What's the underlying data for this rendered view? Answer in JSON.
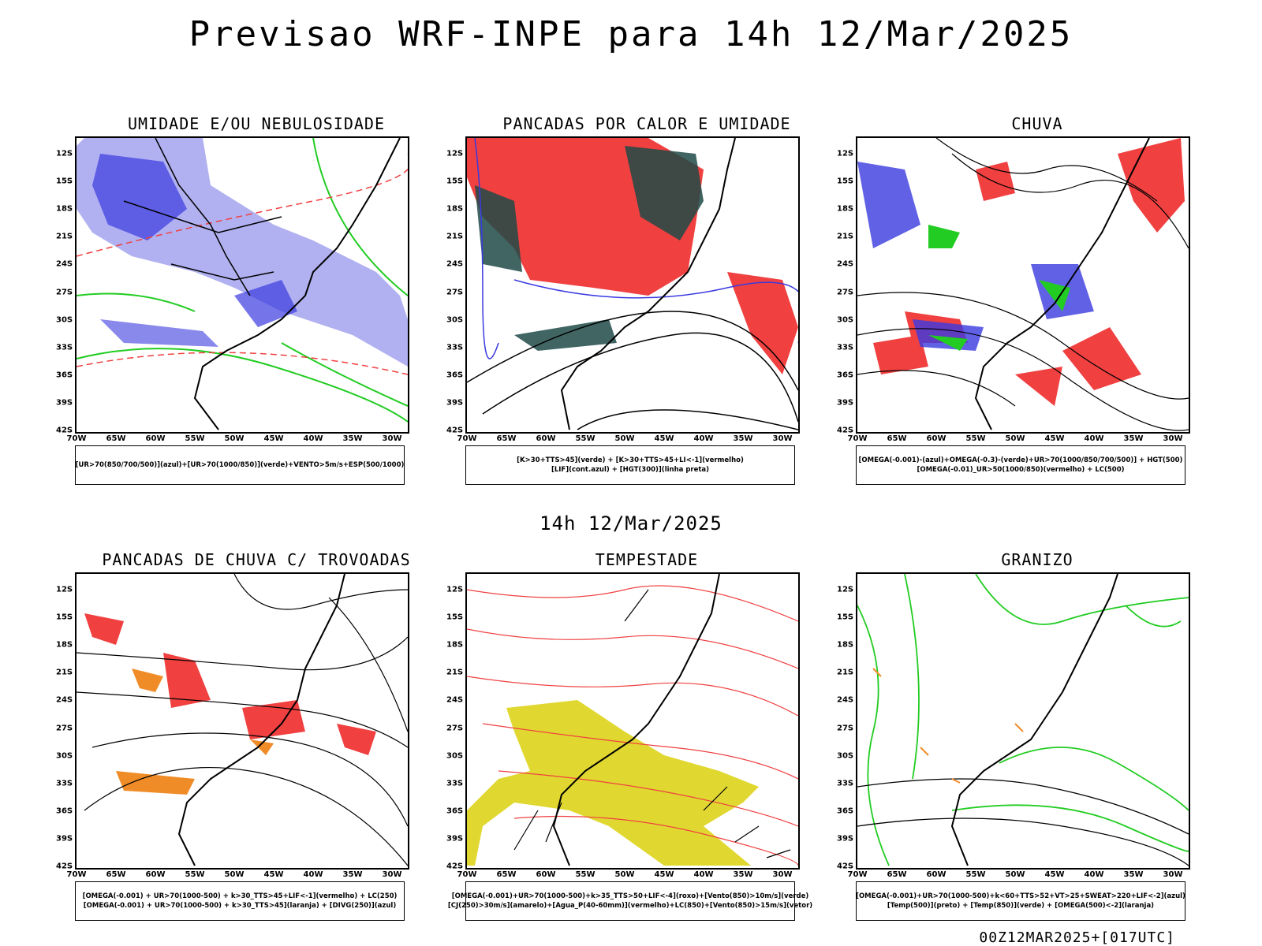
{
  "title": "Previsao WRF-INPE  para 14h 12/Mar/2025",
  "mid_label": "14h 12/Mar/2025",
  "footer": "00Z12MAR2025+[017UTC]",
  "lat_ticks": [
    "12S",
    "15S",
    "18S",
    "21S",
    "24S",
    "27S",
    "30S",
    "33S",
    "36S",
    "39S",
    "42S"
  ],
  "lon_ticks": [
    "70W",
    "65W",
    "60W",
    "55W",
    "50W",
    "45W",
    "40W",
    "35W",
    "30W"
  ],
  "panels": [
    {
      "title": "UMIDADE E/OU NEBULOSIDADE",
      "legend": [
        "[UR>70(850/700/500)](azul)+[UR>70(1000/850)](verde)+VENTO>5m/s+ESP(500/1000)"
      ]
    },
    {
      "title": "PANCADAS POR CALOR E UMIDADE",
      "legend": [
        "[K>30+TTS>45](verde) + [K>30+TTS>45+LI<-1](vermelho)",
        "[LIF](cont.azul) + [HGT(300)](linha preta)"
      ]
    },
    {
      "title": "CHUVA",
      "legend": [
        "[OMEGA(-0.001)-(azul)+OMEGA(-0.3)-(verde)+UR>70(1000/850/700/500)] + HGT(500)",
        "[OMEGA(-0.01)_UR>50(1000/850)(vermelho) + LC(500)"
      ]
    },
    {
      "title": "PANCADAS DE CHUVA C/ TROVOADAS",
      "legend": [
        "[OMEGA(-0.001) + UR>70(1000-500) + k>30_TTS>45+LIF<-1](vermelho) + LC(250)",
        "[OMEGA(-0.001) + UR>70(1000-500) + k>30_TTS>45](laranja) + [DIVG(250)](azul)"
      ]
    },
    {
      "title": "TEMPESTADE",
      "legend": [
        "[OMEGA(-0.001)+UR>70(1000-500)+k>35_TTS>50+LIF<-4](roxo)+[Vento(850)>10m/s](verde)",
        "[CJ(250)>30m/s](amarelo)+[Agua_P(40-60mm)](vermelho)+LC(850)+[Vento(850)>15m/s](vetor)"
      ]
    },
    {
      "title": "GRANIZO",
      "legend": [
        "[OMEGA(-0.001)+UR>70(1000-500)+k<60+TTS>52+VT>25+SWEAT>220+LIF<-2](azul)",
        "[Temp(500)](preto) + [Temp(850)](verde) + [OMEGA(500)<-2](laranja)"
      ]
    }
  ],
  "colors": {
    "blue_light": "#a8a8f0",
    "blue": "#3a3ae0",
    "green": "#22cc22",
    "red": "#f04040",
    "dark_teal": "#1e4a46",
    "orange": "#f08c28",
    "yellow": "#e0d830",
    "black": "#000000"
  }
}
